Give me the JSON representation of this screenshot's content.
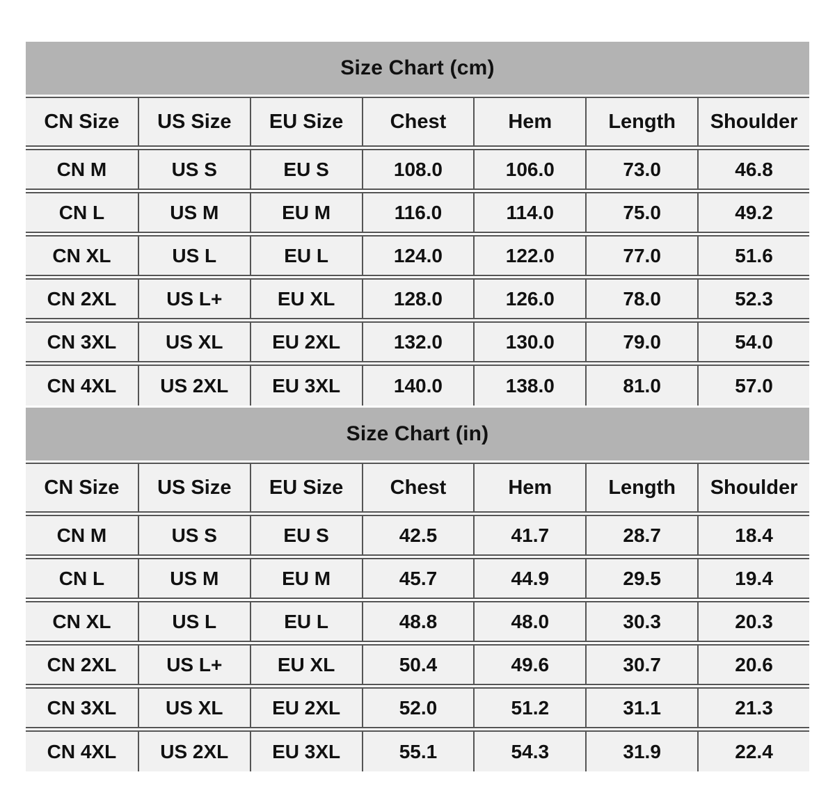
{
  "colors": {
    "page_background": "#ffffff",
    "section_title_background": "#b3b3b3",
    "cell_background": "#f1f1f1",
    "grid_line": "#555555",
    "text": "#111111"
  },
  "chart_data": [
    {
      "type": "table",
      "title": "Size Chart (cm)",
      "columns": [
        "CN Size",
        "US Size",
        "EU Size",
        "Chest",
        "Hem",
        "Length",
        "Shoulder"
      ],
      "rows": [
        [
          "CN M",
          "US S",
          "EU S",
          "108.0",
          "106.0",
          "73.0",
          "46.8"
        ],
        [
          "CN L",
          "US M",
          "EU M",
          "116.0",
          "114.0",
          "75.0",
          "49.2"
        ],
        [
          "CN XL",
          "US L",
          "EU L",
          "124.0",
          "122.0",
          "77.0",
          "51.6"
        ],
        [
          "CN 2XL",
          "US L+",
          "EU XL",
          "128.0",
          "126.0",
          "78.0",
          "52.3"
        ],
        [
          "CN 3XL",
          "US XL",
          "EU 2XL",
          "132.0",
          "130.0",
          "79.0",
          "54.0"
        ],
        [
          "CN 4XL",
          "US 2XL",
          "EU 3XL",
          "140.0",
          "138.0",
          "81.0",
          "57.0"
        ]
      ]
    },
    {
      "type": "table",
      "title": "Size Chart (in)",
      "columns": [
        "CN Size",
        "US Size",
        "EU Size",
        "Chest",
        "Hem",
        "Length",
        "Shoulder"
      ],
      "rows": [
        [
          "CN M",
          "US S",
          "EU S",
          "42.5",
          "41.7",
          "28.7",
          "18.4"
        ],
        [
          "CN L",
          "US M",
          "EU M",
          "45.7",
          "44.9",
          "29.5",
          "19.4"
        ],
        [
          "CN XL",
          "US L",
          "EU L",
          "48.8",
          "48.0",
          "30.3",
          "20.3"
        ],
        [
          "CN 2XL",
          "US L+",
          "EU XL",
          "50.4",
          "49.6",
          "30.7",
          "20.6"
        ],
        [
          "CN 3XL",
          "US XL",
          "EU 2XL",
          "52.0",
          "51.2",
          "31.1",
          "21.3"
        ],
        [
          "CN 4XL",
          "US 2XL",
          "EU 3XL",
          "55.1",
          "54.3",
          "31.9",
          "22.4"
        ]
      ]
    }
  ]
}
